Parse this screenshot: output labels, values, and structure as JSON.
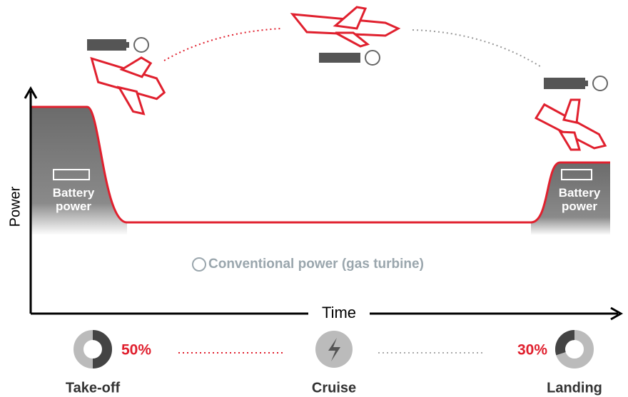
{
  "axes": {
    "y_label": "Power",
    "x_label": "Time"
  },
  "battery_labels": [
    "Battery power",
    "Battery power"
  ],
  "conventional_label": "Conventional power (gas turbine)",
  "phases": [
    {
      "label": "Take-off",
      "battery_share": 50,
      "share_label": "50%"
    },
    {
      "label": "Cruise"
    },
    {
      "label": "Landing",
      "battery_share": 30,
      "share_label": "30%"
    }
  ]
}
